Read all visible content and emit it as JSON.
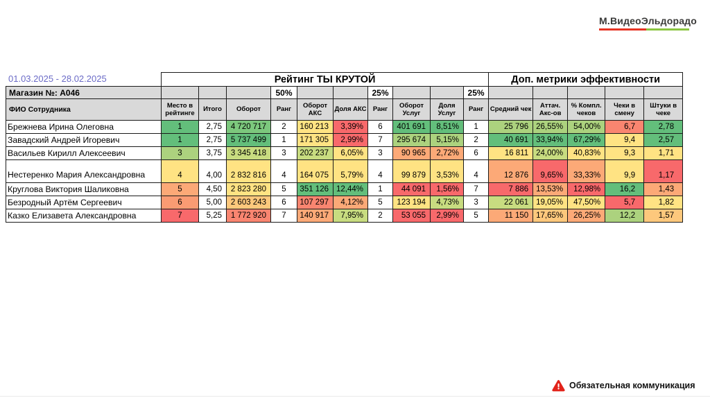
{
  "header": {
    "date_range": "01.03.2025 - 28.02.2025"
  },
  "logo": {
    "text": "М.ВидеоЭльдорадо",
    "underline_red": "#e63323",
    "underline_green": "#8bc540"
  },
  "footer": {
    "warning": "Обязательная коммуникация",
    "icon_color": "#e2231a"
  },
  "table": {
    "title_rating": "Рейтинг ТЫ КРУТОЙ",
    "title_metrics": "Доп. метрики эффективности",
    "store_label": "Магазин №: A046",
    "weights": {
      "turnover": "50%",
      "acs": "25%",
      "services": "25%"
    },
    "columns": [
      "ФИО Сотрудника",
      "Место в рейтинге",
      "Итого",
      "Оборот",
      "Ранг",
      "Оборот АКС",
      "Доля АКС",
      "Ранг",
      "Оборот Услуг",
      "Доля Услуг",
      "Ранг",
      "Средний чек",
      "Аттач. Акс-ов",
      "% Компл. чеков",
      "Чеки в смену",
      "Штуки в чеке"
    ],
    "column_keys": [
      "place",
      "total",
      "turnover",
      "turnover-rank",
      "acs-turnover",
      "acs-share",
      "acs-rank",
      "services-turnover",
      "services-share",
      "services-rank",
      "avg-check",
      "attach-rate",
      "complex-checks",
      "checks-per-shift",
      "items-per-check"
    ],
    "header_bg": "#d9d9d9",
    "palette": {
      "g": "#63be7b",
      "g2": "#7cc87d",
      "lg": "#acd27e",
      "yg": "#c8dc80",
      "y": "#ffe383",
      "oy": "#fdc87c",
      "o": "#fca977",
      "o2": "#fa9b73",
      "ro": "#f98570",
      "r": "#f8696b",
      "w": "#ffffff"
    },
    "rows": [
      {
        "name": "Брежнева Ирина Олеговна",
        "tall": false,
        "cells": [
          [
            "1",
            "g"
          ],
          [
            "2,75",
            "w"
          ],
          [
            "4 720 717",
            "g2"
          ],
          [
            "2",
            "w"
          ],
          [
            "160 213",
            "y"
          ],
          [
            "3,39%",
            "r"
          ],
          [
            "6",
            "w"
          ],
          [
            "401 691",
            "g"
          ],
          [
            "8,51%",
            "g"
          ],
          [
            "1",
            "w"
          ],
          [
            "25 796",
            "lg"
          ],
          [
            "26,55%",
            "lg"
          ],
          [
            "54,00%",
            "lg"
          ],
          [
            "6,7",
            "ro"
          ],
          [
            "2,78",
            "g"
          ]
        ]
      },
      {
        "name": "Завадский Андрей Игоревич",
        "tall": false,
        "cells": [
          [
            "1",
            "g"
          ],
          [
            "2,75",
            "w"
          ],
          [
            "5 737 499",
            "g"
          ],
          [
            "1",
            "w"
          ],
          [
            "171 305",
            "y"
          ],
          [
            "2,99%",
            "r"
          ],
          [
            "7",
            "w"
          ],
          [
            "295 674",
            "lg"
          ],
          [
            "5,15%",
            "lg"
          ],
          [
            "2",
            "w"
          ],
          [
            "40 691",
            "g"
          ],
          [
            "33,94%",
            "g"
          ],
          [
            "67,29%",
            "g"
          ],
          [
            "9,4",
            "y"
          ],
          [
            "2,57",
            "g"
          ]
        ]
      },
      {
        "name": "Васильев Кирилл Алексеевич",
        "tall": false,
        "cells": [
          [
            "3",
            "lg"
          ],
          [
            "3,75",
            "w"
          ],
          [
            "3 345 418",
            "yg"
          ],
          [
            "3",
            "w"
          ],
          [
            "202 237",
            "yg"
          ],
          [
            "6,05%",
            "y"
          ],
          [
            "3",
            "w"
          ],
          [
            "90 965",
            "o"
          ],
          [
            "2,72%",
            "o"
          ],
          [
            "6",
            "w"
          ],
          [
            "16 811",
            "y"
          ],
          [
            "24,00%",
            "yg"
          ],
          [
            "40,83%",
            "y"
          ],
          [
            "9,3",
            "y"
          ],
          [
            "1,71",
            "y"
          ]
        ]
      },
      {
        "name": "Нестеренко Мария Александровна",
        "tall": true,
        "cells": [
          [
            "4",
            "y"
          ],
          [
            "4,00",
            "w"
          ],
          [
            "2 832 816",
            "y"
          ],
          [
            "4",
            "w"
          ],
          [
            "164 075",
            "y"
          ],
          [
            "5,79%",
            "y"
          ],
          [
            "4",
            "w"
          ],
          [
            "99 879",
            "y"
          ],
          [
            "3,53%",
            "y"
          ],
          [
            "4",
            "w"
          ],
          [
            "12 876",
            "o"
          ],
          [
            "9,65%",
            "r"
          ],
          [
            "33,33%",
            "o"
          ],
          [
            "9,9",
            "y"
          ],
          [
            "1,17",
            "r"
          ]
        ]
      },
      {
        "name": "Круглова Виктория Шаликовна",
        "tall": false,
        "cells": [
          [
            "5",
            "o"
          ],
          [
            "4,50",
            "w"
          ],
          [
            "2 823 280",
            "y"
          ],
          [
            "5",
            "w"
          ],
          [
            "351 126",
            "g"
          ],
          [
            "12,44%",
            "g"
          ],
          [
            "1",
            "w"
          ],
          [
            "44 091",
            "r"
          ],
          [
            "1,56%",
            "r"
          ],
          [
            "7",
            "w"
          ],
          [
            "7 886",
            "r"
          ],
          [
            "13,53%",
            "o"
          ],
          [
            "12,98%",
            "r"
          ],
          [
            "16,2",
            "g"
          ],
          [
            "1,43",
            "o"
          ]
        ]
      },
      {
        "name": "Безродный Артём Сергеевич",
        "tall": false,
        "cells": [
          [
            "6",
            "o2"
          ],
          [
            "5,00",
            "w"
          ],
          [
            "2 603 243",
            "oy"
          ],
          [
            "6",
            "w"
          ],
          [
            "107 297",
            "ro"
          ],
          [
            "4,12%",
            "o"
          ],
          [
            "5",
            "w"
          ],
          [
            "123 194",
            "y"
          ],
          [
            "4,73%",
            "yg"
          ],
          [
            "3",
            "w"
          ],
          [
            "22 061",
            "yg"
          ],
          [
            "19,05%",
            "y"
          ],
          [
            "47,50%",
            "y"
          ],
          [
            "5,7",
            "r"
          ],
          [
            "1,82",
            "y"
          ]
        ]
      },
      {
        "name": "Казко Елизавета Александровна",
        "tall": false,
        "cells": [
          [
            "7",
            "r"
          ],
          [
            "5,25",
            "w"
          ],
          [
            "1 772 920",
            "ro"
          ],
          [
            "7",
            "w"
          ],
          [
            "140 917",
            "o"
          ],
          [
            "7,95%",
            "yg"
          ],
          [
            "2",
            "w"
          ],
          [
            "53 055",
            "r"
          ],
          [
            "2,99%",
            "r"
          ],
          [
            "5",
            "w"
          ],
          [
            "11 150",
            "o"
          ],
          [
            "17,65%",
            "oy"
          ],
          [
            "26,25%",
            "o"
          ],
          [
            "12,2",
            "lg"
          ],
          [
            "1,57",
            "oy"
          ]
        ]
      }
    ]
  }
}
